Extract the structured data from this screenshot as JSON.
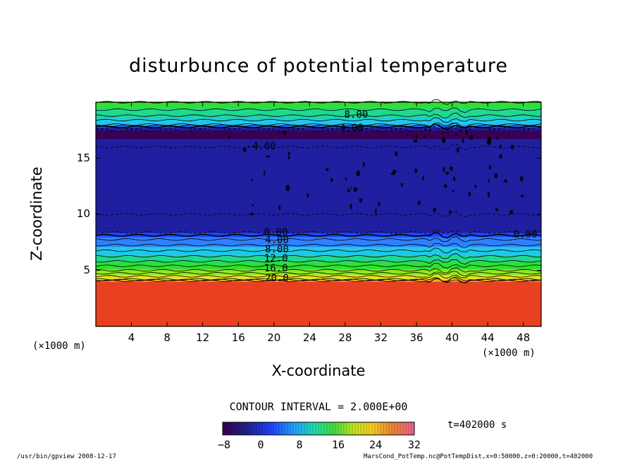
{
  "chart_data": {
    "type": "contour",
    "title": "disturbunce of potential temperature",
    "xlabel": "X-coordinate",
    "ylabel": "Z-coordinate",
    "x_unit_left": "(×1000 m)",
    "x_unit_right": "(×1000 m)",
    "xlim": [
      0,
      50
    ],
    "ylim": [
      0,
      20
    ],
    "x_ticks": [
      4,
      8,
      12,
      16,
      20,
      24,
      28,
      32,
      36,
      40,
      44,
      48
    ],
    "x_tick_labels": [
      "4",
      "8",
      "12",
      "16",
      "20",
      "24",
      "28",
      "32",
      "36",
      "40",
      "44",
      "48"
    ],
    "y_ticks": [
      5,
      10,
      15
    ],
    "y_tick_labels": [
      "5",
      "10",
      "15"
    ],
    "contour_interval_text": "CONTOUR INTERVAL = 2.000E+00",
    "contour_labels": [
      "8.00",
      "4.00",
      "0.00",
      "0.00",
      "4.00",
      "8.00",
      "12.0",
      "16.0",
      "20.0",
      "-4.00"
    ],
    "colorbar": {
      "min": -8,
      "max": 32,
      "tick_labels": [
        "−8",
        "0",
        "8",
        "16",
        "24",
        "32"
      ]
    },
    "levels_profile": [
      {
        "z": 0,
        "value": 26
      },
      {
        "z": 4,
        "value": 26
      },
      {
        "z": 4.2,
        "value": 20
      },
      {
        "z": 5,
        "value": 14
      },
      {
        "z": 6,
        "value": 9
      },
      {
        "z": 7,
        "value": 5
      },
      {
        "z": 8,
        "value": 1
      },
      {
        "z": 8.5,
        "value": -3
      },
      {
        "z": 10,
        "value": -4
      },
      {
        "z": 15,
        "value": -4
      },
      {
        "z": 16,
        "value": -4
      },
      {
        "z": 17.5,
        "value": -6
      },
      {
        "z": 18,
        "value": 4
      },
      {
        "z": 19,
        "value": 9
      },
      {
        "z": 20,
        "value": 12
      }
    ]
  },
  "annotations": {
    "timestamp": "t=402000 s",
    "footer_left": "/usr/bin/gpview   2008-12-17",
    "footer_right": "MarsCond_PotTemp.nc@PotTempDist,x=0:50000,z=0:20000,t=402000"
  },
  "colors": {
    "colormap": [
      "#3a0055",
      "#1f1fa0",
      "#1f48ff",
      "#2f80ff",
      "#20c8e8",
      "#20d890",
      "#30e030",
      "#90e820",
      "#e8e020",
      "#f8c820",
      "#f09020",
      "#e84020",
      "#e02020"
    ]
  }
}
